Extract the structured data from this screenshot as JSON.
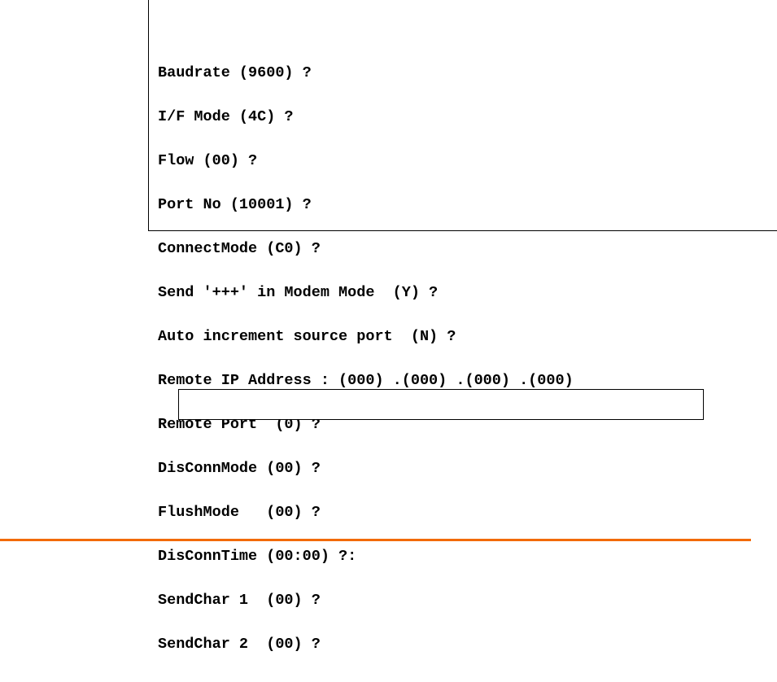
{
  "terminal": {
    "lines": [
      "Baudrate (9600) ?",
      "I/F Mode (4C) ?",
      "Flow (00) ?",
      "Port No (10001) ?",
      "ConnectMode (C0) ?",
      "Send '+++' in Modem Mode  (Y) ?",
      "Auto increment source port  (N) ?",
      "Remote IP Address : (000) .(000) .(000) .(000)",
      "Remote Port  (0) ?",
      "DisConnMode (00) ?",
      "FlushMode   (00) ?",
      "DisConnTime (00:00) ?:",
      "SendChar 1  (00) ?",
      "SendChar 2  (00) ?"
    ]
  },
  "colors": {
    "footer_rule": "#f26a00"
  }
}
